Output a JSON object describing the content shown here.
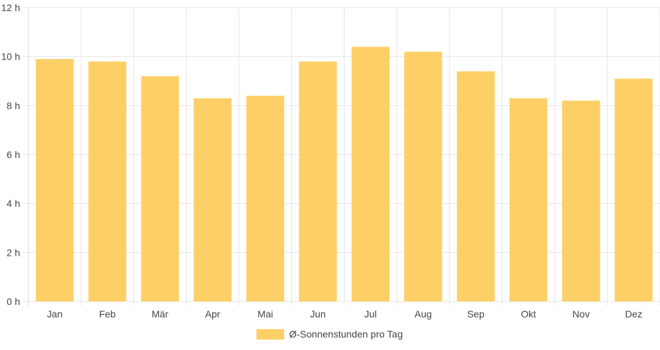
{
  "chart_data": {
    "type": "bar",
    "categories": [
      "Jan",
      "Feb",
      "Mär",
      "Apr",
      "Mai",
      "Jun",
      "Jul",
      "Aug",
      "Sep",
      "Okt",
      "Nov",
      "Dez"
    ],
    "series": [
      {
        "name": "Ø-Sonnenstunden pro Tag",
        "values": [
          9.9,
          9.8,
          9.2,
          8.3,
          8.4,
          9.8,
          10.4,
          10.2,
          9.4,
          8.3,
          8.2,
          9.1
        ]
      }
    ],
    "y_ticks": [
      "0 h",
      "2 h",
      "4 h",
      "6 h",
      "8 h",
      "10 h",
      "12 h"
    ],
    "ylim": [
      0,
      12
    ],
    "grid": true,
    "legend_position": "bottom",
    "colors": {
      "bar": "#fdd067",
      "grid": "#e6e6e6",
      "text": "#444444"
    }
  }
}
